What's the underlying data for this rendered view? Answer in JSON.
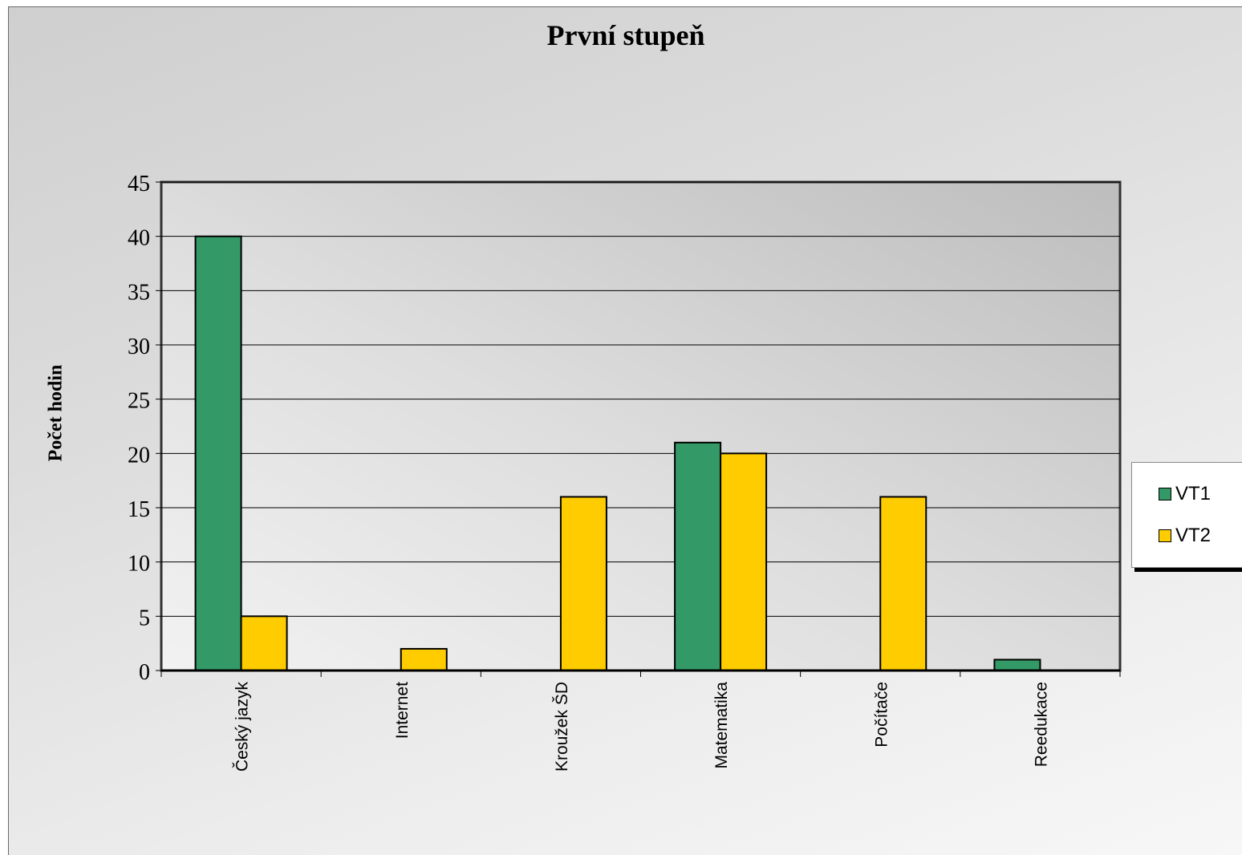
{
  "chart_data": {
    "type": "bar",
    "title": "První stupeň",
    "xlabel": "",
    "ylabel": "Počet hodin",
    "categories": [
      "Český jazyk",
      "Internet",
      "Kroužek ŠD",
      "Matematika",
      "Počítače",
      "Reedukace"
    ],
    "series": [
      {
        "name": "VT1",
        "color": "#339966",
        "values": [
          40,
          0,
          0,
          21,
          0,
          1
        ]
      },
      {
        "name": "VT2",
        "color": "#ffcc00",
        "values": [
          5,
          2,
          16,
          20,
          16,
          0
        ]
      }
    ],
    "ylim": [
      0,
      45
    ],
    "yticks": [
      0,
      5,
      10,
      15,
      20,
      25,
      30,
      35,
      40,
      45
    ],
    "grid": true,
    "legend_position": "right"
  }
}
